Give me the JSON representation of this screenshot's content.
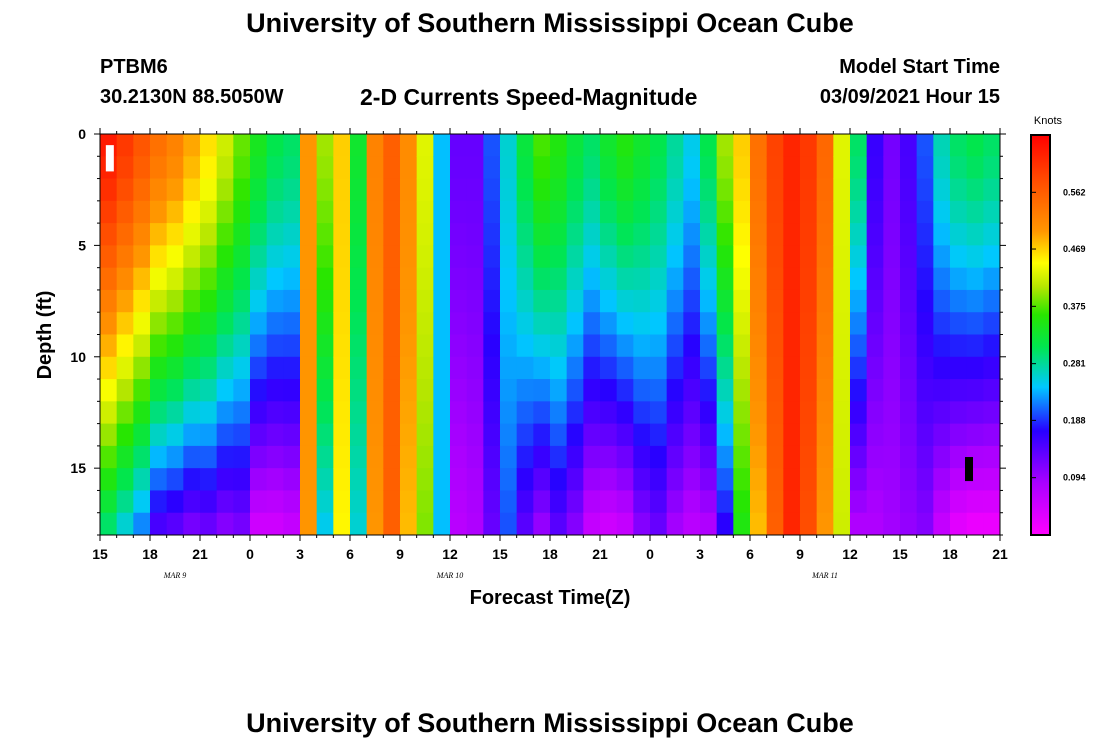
{
  "header": {
    "title_top": "University of Southern Mississippi Ocean Cube",
    "station": "PTBM6",
    "coords": "30.2130N 88.5050W",
    "plot_title": "2-D Currents Speed-Magnitude",
    "model_label": "Model Start Time",
    "model_time": "03/09/2021 Hour 15",
    "title_bottom": "University of Southern Mississippi Ocean Cube"
  },
  "chart_data": {
    "type": "heatmap",
    "title": "2-D Currents Speed-Magnitude",
    "xlabel": "Forecast Time(Z)",
    "ylabel": "Depth (ft)",
    "x_start_hour": 15,
    "x_hours": 54,
    "ylim": [
      0,
      18
    ],
    "y_ticks": [
      "0",
      "5",
      "10",
      "15"
    ],
    "x_tick_labels": [
      "15",
      "18",
      "21",
      "0",
      "3",
      "6",
      "9",
      "12",
      "15",
      "18",
      "21",
      "0",
      "3",
      "6",
      "9",
      "12",
      "15",
      "18",
      "21"
    ],
    "date_labels": [
      {
        "text": "MAR  9",
        "hour_offset": 4.5
      },
      {
        "text": "MAR  10",
        "hour_offset": 21
      },
      {
        "text": "MAR  11",
        "hour_offset": 43.5
      }
    ],
    "colorbar": {
      "unit": "Knots",
      "ticks": [
        "0.562",
        "0.469",
        "0.375",
        "0.281",
        "0.188",
        "0.094"
      ],
      "tick_values": [
        0.562,
        0.469,
        0.375,
        0.281,
        0.188,
        0.094
      ],
      "vmin": 0.0,
      "vmax": 0.656
    },
    "surface_speed_profile": [
      0.63,
      0.6,
      0.57,
      0.54,
      0.52,
      0.49,
      0.46,
      0.42,
      0.38,
      0.34,
      0.31,
      0.3,
      0.5,
      0.4,
      0.47,
      0.33,
      0.52,
      0.56,
      0.51,
      0.43,
      0.24,
      0.13,
      0.13,
      0.2,
      0.26,
      0.32,
      0.37,
      0.35,
      0.32,
      0.3,
      0.33,
      0.35,
      0.33,
      0.31,
      0.28,
      0.25,
      0.31,
      0.4,
      0.47,
      0.54,
      0.59,
      0.62,
      0.6,
      0.55,
      0.43,
      0.3,
      0.16,
      0.12,
      0.15,
      0.2,
      0.27,
      0.3,
      0.31,
      0.3
    ],
    "deep_speed_profile": [
      0.3,
      0.26,
      0.22,
      0.15,
      0.14,
      0.12,
      0.13,
      0.11,
      0.12,
      0.05,
      0.05,
      0.06,
      0.5,
      0.25,
      0.45,
      0.26,
      0.5,
      0.56,
      0.48,
      0.39,
      0.24,
      0.07,
      0.08,
      0.13,
      0.2,
      0.14,
      0.1,
      0.14,
      0.11,
      0.06,
      0.05,
      0.06,
      0.11,
      0.13,
      0.09,
      0.07,
      0.08,
      0.17,
      0.35,
      0.48,
      0.56,
      0.62,
      0.58,
      0.5,
      0.42,
      0.08,
      0.08,
      0.09,
      0.1,
      0.11,
      0.06,
      0.03,
      0.02,
      0.02
    ],
    "markers": [
      {
        "hour_offset": 0.35,
        "depth_from": 0.5,
        "depth_to": 1.5,
        "color": "#ffffff"
      },
      {
        "hour_offset": 51.9,
        "depth_from": 14.5,
        "depth_to": 15.4,
        "color": "#000000"
      }
    ]
  }
}
